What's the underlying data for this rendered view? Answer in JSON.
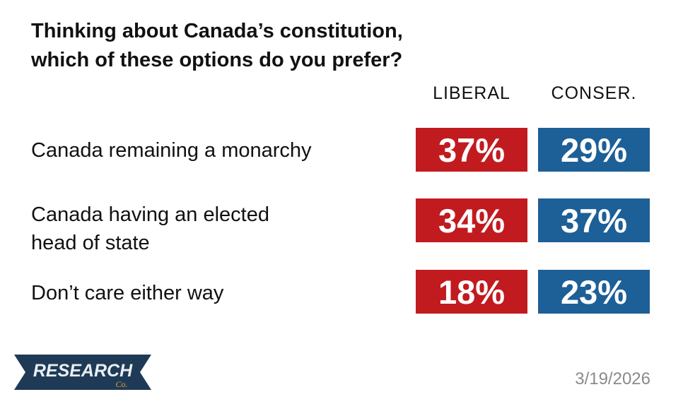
{
  "chart_data": {
    "type": "table",
    "title": "Thinking about Canada’s constitution, which of these options do you prefer?",
    "title_lines": [
      "Thinking about Canada’s constitution,",
      "which of these options do you prefer?"
    ],
    "columns": [
      {
        "name": "LIBERAL",
        "color": "#c11b1f"
      },
      {
        "name": "CONSER.",
        "color": "#1d5f97"
      }
    ],
    "rows": [
      {
        "label_lines": [
          "Canada remaining a monarchy"
        ],
        "values": [
          37,
          29
        ],
        "display": [
          "37%",
          "29%"
        ]
      },
      {
        "label_lines": [
          "Canada having an elected",
          "head of state"
        ],
        "values": [
          34,
          37
        ],
        "display": [
          "34%",
          "37%"
        ]
      },
      {
        "label_lines": [
          "Don’t care either way"
        ],
        "values": [
          18,
          23
        ],
        "display": [
          "18%",
          "23%"
        ]
      }
    ],
    "units": "%"
  },
  "logo": {
    "text": "RESEARCH",
    "subtext": "Co."
  },
  "date": "3/19/2026"
}
